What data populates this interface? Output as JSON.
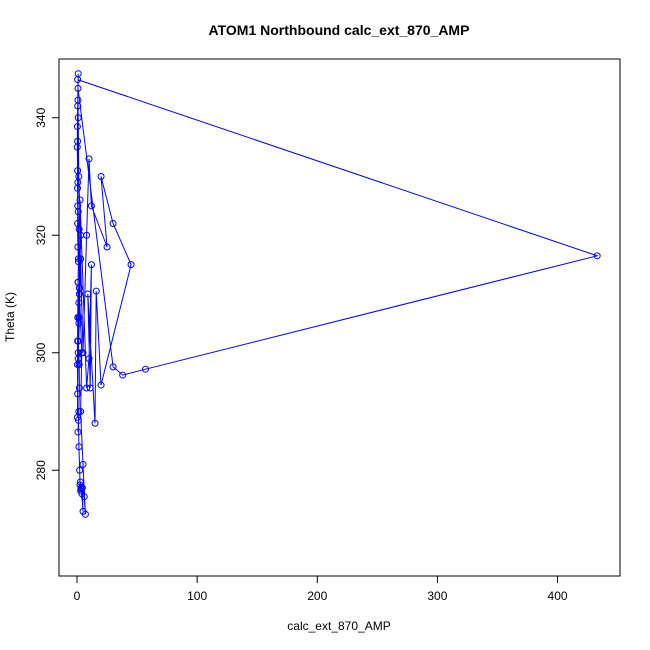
{
  "chart_data": {
    "type": "line",
    "title": "ATOM1 Northbound calc_ext_870_AMP",
    "xlabel": "calc_ext_870_AMP",
    "ylabel": "Theta (K)",
    "xlim": [
      -15,
      452
    ],
    "ylim": [
      262,
      350
    ],
    "xticks": [
      0,
      100,
      200,
      300,
      400
    ],
    "yticks": [
      280,
      300,
      320,
      340
    ],
    "grid": false,
    "color": "#0000ff",
    "marker": "open-circle",
    "series": [
      {
        "x": [
          0.5,
          433,
          57,
          38,
          30,
          0.8,
          1.0,
          0.6,
          0.3,
          0.2,
          0.5,
          0.4,
          0.6,
          0.5,
          0.7,
          1.2,
          0.8,
          1.5,
          0.9,
          1.0,
          1.8,
          2.0,
          1.5,
          0.8,
          1.2,
          1.6,
          2.2,
          2.5,
          3.0,
          3.5,
          2.8,
          3.2,
          4.0,
          5.0,
          4.5,
          6.0,
          7.0,
          5.0,
          3.0,
          4.0,
          2.0,
          3.0,
          1.5,
          1.0,
          0.8,
          0.5,
          0.7,
          1.0,
          1.2,
          0.9,
          0.6,
          0.4,
          0.5,
          0.3,
          1.0,
          1.5,
          2.0,
          1.8,
          2.5,
          8.0,
          10.0,
          12.0,
          11.0,
          9.0,
          15.0,
          16.0,
          20.0,
          45.0,
          30.0,
          20.0,
          25.0,
          12.0,
          10.0,
          8.0,
          5.0,
          3.0,
          2.0,
          1.0,
          0.5
        ],
        "y": [
          346.5,
          316.5,
          297.2,
          296.2,
          297.6,
          345.0,
          347.5,
          342.0,
          338.5,
          335.0,
          331.0,
          328.0,
          325.0,
          322.0,
          318.0,
          315.5,
          312.0,
          308.5,
          306.0,
          302.0,
          298.0,
          294.0,
          290.0,
          286.5,
          288.5,
          284.0,
          280.0,
          277.5,
          276.5,
          277.0,
          278.0,
          276.8,
          276.0,
          273.0,
          277.0,
          275.5,
          272.5,
          281.0,
          290.0,
          300.0,
          310.0,
          320.0,
          330.0,
          340.0,
          343.0,
          336.0,
          329.0,
          324.0,
          316.0,
          312.0,
          306.0,
          298.0,
          293.0,
          289.0,
          300.0,
          305.0,
          311.0,
          321.0,
          326.0,
          294.0,
          299.0,
          315.0,
          294.0,
          310.0,
          288.0,
          310.5,
          294.5,
          315.0,
          322.0,
          330.0,
          318.0,
          325.0,
          333.0,
          320.0,
          300.0,
          316.0,
          306.0,
          299.0,
          302.0
        ]
      }
    ]
  }
}
